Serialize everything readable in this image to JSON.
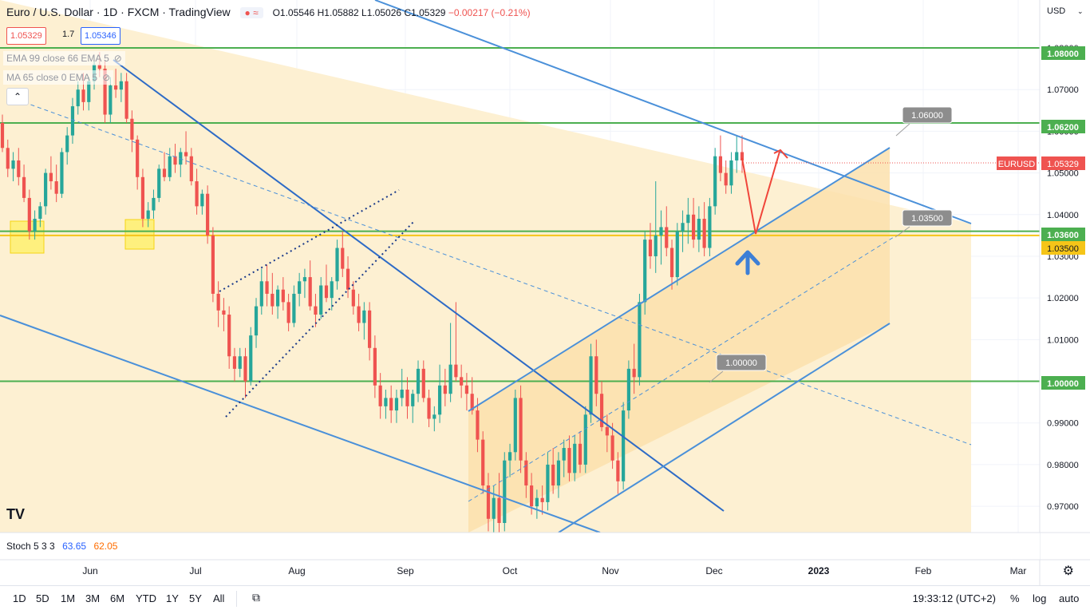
{
  "header": {
    "title": "Euro / U.S. Dollar · 1D · FXCM · TradingView",
    "badge": "≈",
    "open": "O1.05546",
    "high": "H1.05882",
    "low": "L1.05026",
    "close": "C1.05329",
    "change": "−0.00217 (−0.21%)"
  },
  "sell_box": "1.05329",
  "spread": "1.7",
  "buy_box": "1.05346",
  "indicators": [
    "EMA 99 close 66 EMA 5",
    "MA 65 close 0 EMA 5"
  ],
  "currency": "USD",
  "price_labels": {
    "level_top": "1.08000",
    "level_1062": "1.06200",
    "symbol": "EURUSD",
    "last": "1.05329",
    "level_1036": "1.03600",
    "level_1035": "1.03500",
    "level_parity": "1.00000"
  },
  "callouts": [
    "1.06000",
    "1.03500",
    "1.00000"
  ],
  "stoch": {
    "label": "Stoch 5 3 3",
    "k": "63.65",
    "d": "62.05"
  },
  "time_ranges": [
    "1D",
    "5D",
    "1M",
    "3M",
    "6M",
    "YTD",
    "1Y",
    "5Y",
    "All"
  ],
  "clock": "19:33:12 (UTC+2)",
  "options": {
    "percent": "%",
    "log": "log",
    "auto": "auto"
  },
  "colors": {
    "up": "#26a69a",
    "down": "#ef5350",
    "channel": "#2962ff",
    "trend": "#4a90d9",
    "green_level": "#4caf50",
    "yellow_level": "#f5c518",
    "zone": "#fde9b8",
    "arrow_red": "#f0453a",
    "arrow_blue": "#3d7fd6"
  },
  "chart_data": {
    "type": "candlestick",
    "symbol": "EURUSD",
    "y_axis": {
      "ticks": [
        "1.08000",
        "1.07000",
        "1.06000",
        "1.05000",
        "1.04000",
        "1.03000",
        "1.02000",
        "1.01000",
        "1.00000",
        "0.99000",
        "0.98000",
        "0.97000"
      ],
      "ylim": [
        0.9637,
        1.0915
      ]
    },
    "x_axis": {
      "ticks": [
        "Jun",
        "Jul",
        "Aug",
        "Sep",
        "Oct",
        "Nov",
        "Dec",
        "2023",
        "Feb",
        "Mar"
      ]
    },
    "horizontal_levels": [
      1.08,
      1.062,
      1.036,
      1.035,
      1.0
    ],
    "candles": [
      [
        1.062,
        1.064,
        1.055,
        1.056
      ],
      [
        1.056,
        1.058,
        1.049,
        1.051
      ],
      [
        1.051,
        1.055,
        1.048,
        1.053
      ],
      [
        1.053,
        1.056,
        1.047,
        1.049
      ],
      [
        1.049,
        1.052,
        1.043,
        1.044
      ],
      [
        1.044,
        1.046,
        1.034,
        1.036
      ],
      [
        1.036,
        1.041,
        1.034,
        1.039
      ],
      [
        1.039,
        1.043,
        1.037,
        1.042
      ],
      [
        1.042,
        1.051,
        1.04,
        1.05
      ],
      [
        1.05,
        1.054,
        1.046,
        1.048
      ],
      [
        1.048,
        1.052,
        1.043,
        1.045
      ],
      [
        1.045,
        1.056,
        1.044,
        1.055
      ],
      [
        1.055,
        1.061,
        1.052,
        1.059
      ],
      [
        1.059,
        1.068,
        1.057,
        1.066
      ],
      [
        1.066,
        1.072,
        1.064,
        1.07
      ],
      [
        1.07,
        1.074,
        1.065,
        1.067
      ],
      [
        1.067,
        1.073,
        1.065,
        1.072
      ],
      [
        1.072,
        1.078,
        1.07,
        1.076
      ],
      [
        1.076,
        1.079,
        1.073,
        1.075
      ],
      [
        1.075,
        1.077,
        1.062,
        1.064
      ],
      [
        1.064,
        1.073,
        1.062,
        1.071
      ],
      [
        1.071,
        1.075,
        1.068,
        1.07
      ],
      [
        1.07,
        1.074,
        1.067,
        1.072
      ],
      [
        1.072,
        1.074,
        1.062,
        1.063
      ],
      [
        1.063,
        1.065,
        1.055,
        1.058
      ],
      [
        1.058,
        1.059,
        1.046,
        1.049
      ],
      [
        1.049,
        1.051,
        1.037,
        1.039
      ],
      [
        1.039,
        1.043,
        1.037,
        1.041
      ],
      [
        1.041,
        1.046,
        1.039,
        1.044
      ],
      [
        1.044,
        1.052,
        1.043,
        1.051
      ],
      [
        1.051,
        1.055,
        1.048,
        1.049
      ],
      [
        1.049,
        1.056,
        1.048,
        1.054
      ],
      [
        1.054,
        1.057,
        1.05,
        1.052
      ],
      [
        1.052,
        1.056,
        1.049,
        1.055
      ],
      [
        1.055,
        1.06,
        1.052,
        1.054
      ],
      [
        1.054,
        1.056,
        1.047,
        1.048
      ],
      [
        1.048,
        1.051,
        1.04,
        1.042
      ],
      [
        1.042,
        1.046,
        1.04,
        1.045
      ],
      [
        1.045,
        1.047,
        1.033,
        1.035
      ],
      [
        1.035,
        1.037,
        1.019,
        1.021
      ],
      [
        1.021,
        1.024,
        1.013,
        1.017
      ],
      [
        1.017,
        1.02,
        1.012,
        1.016
      ],
      [
        1.016,
        1.018,
        1.003,
        1.006
      ],
      [
        1.006,
        1.008,
        1.0,
        1.003
      ],
      [
        1.003,
        1.008,
        1.001,
        1.006
      ],
      [
        1.006,
        1.008,
        0.996,
        1.0
      ],
      [
        1.0,
        1.013,
        0.999,
        1.011
      ],
      [
        1.011,
        1.02,
        1.008,
        1.018
      ],
      [
        1.018,
        1.027,
        1.016,
        1.024
      ],
      [
        1.024,
        1.028,
        1.018,
        1.021
      ],
      [
        1.021,
        1.026,
        1.016,
        1.018
      ],
      [
        1.018,
        1.023,
        1.015,
        1.022
      ],
      [
        1.022,
        1.025,
        1.017,
        1.019
      ],
      [
        1.019,
        1.021,
        1.012,
        1.014
      ],
      [
        1.014,
        1.023,
        1.013,
        1.021
      ],
      [
        1.021,
        1.026,
        1.018,
        1.024
      ],
      [
        1.024,
        1.027,
        1.02,
        1.025
      ],
      [
        1.025,
        1.029,
        1.017,
        1.018
      ],
      [
        1.018,
        1.021,
        1.013,
        1.016
      ],
      [
        1.016,
        1.025,
        1.015,
        1.023
      ],
      [
        1.023,
        1.028,
        1.019,
        1.02
      ],
      [
        1.02,
        1.025,
        1.017,
        1.024
      ],
      [
        1.024,
        1.034,
        1.022,
        1.032
      ],
      [
        1.032,
        1.036,
        1.025,
        1.027
      ],
      [
        1.027,
        1.03,
        1.02,
        1.022
      ],
      [
        1.022,
        1.024,
        1.016,
        1.018
      ],
      [
        1.018,
        1.021,
        1.012,
        1.014
      ],
      [
        1.014,
        1.019,
        1.01,
        1.017
      ],
      [
        1.017,
        1.019,
        1.005,
        1.008
      ],
      [
        1.008,
        1.011,
        0.996,
        0.999
      ],
      [
        0.999,
        1.002,
        0.991,
        0.994
      ],
      [
        0.994,
        0.998,
        0.991,
        0.996
      ],
      [
        0.996,
        0.999,
        0.99,
        0.993
      ],
      [
        0.993,
        0.998,
        0.99,
        0.996
      ],
      [
        0.996,
        1.003,
        0.994,
        0.998
      ],
      [
        0.998,
        1.001,
        0.991,
        0.994
      ],
      [
        0.994,
        0.998,
        0.99,
        0.997
      ],
      [
        0.997,
        1.005,
        0.995,
        1.003
      ],
      [
        1.003,
        1.005,
        0.995,
        0.996
      ],
      [
        0.996,
        0.998,
        0.989,
        0.991
      ],
      [
        0.991,
        0.994,
        0.988,
        0.992
      ],
      [
        0.992,
        1.004,
        0.99,
        0.999
      ],
      [
        0.999,
        1.003,
        0.994,
        0.997
      ],
      [
        0.997,
        1.014,
        0.995,
        1.004
      ],
      [
        1.004,
        1.019,
        1.0,
        1.001
      ],
      [
        1.001,
        1.004,
        0.996,
        0.999
      ],
      [
        0.999,
        1.002,
        0.993,
        0.997
      ],
      [
        0.997,
        1.001,
        0.992,
        0.993
      ],
      [
        0.993,
        0.996,
        0.983,
        0.986
      ],
      [
        0.986,
        0.988,
        0.973,
        0.975
      ],
      [
        0.975,
        0.978,
        0.964,
        0.967
      ],
      [
        0.967,
        0.975,
        0.963,
        0.972
      ],
      [
        0.972,
        0.978,
        0.963,
        0.966
      ],
      [
        0.966,
        0.983,
        0.964,
        0.981
      ],
      [
        0.981,
        0.985,
        0.977,
        0.983
      ],
      [
        0.983,
        0.998,
        0.981,
        0.996
      ],
      [
        0.996,
        0.999,
        0.978,
        0.981
      ],
      [
        0.981,
        0.983,
        0.972,
        0.975
      ],
      [
        0.975,
        0.978,
        0.968,
        0.97
      ],
      [
        0.97,
        0.974,
        0.967,
        0.972
      ],
      [
        0.972,
        0.975,
        0.968,
        0.971
      ],
      [
        0.971,
        0.983,
        0.969,
        0.98
      ],
      [
        0.98,
        0.984,
        0.973,
        0.975
      ],
      [
        0.975,
        0.983,
        0.972,
        0.981
      ],
      [
        0.981,
        0.986,
        0.977,
        0.984
      ],
      [
        0.984,
        0.987,
        0.976,
        0.978
      ],
      [
        0.978,
        0.987,
        0.976,
        0.985
      ],
      [
        0.985,
        0.988,
        0.978,
        0.98
      ],
      [
        0.98,
        0.994,
        0.978,
        0.992
      ],
      [
        0.992,
        1.009,
        0.99,
        1.006
      ],
      [
        1.006,
        1.01,
        0.994,
        0.997
      ],
      [
        0.997,
        1.0,
        0.988,
        0.989
      ],
      [
        0.989,
        0.992,
        0.983,
        0.987
      ],
      [
        0.987,
        0.99,
        0.979,
        0.981
      ],
      [
        0.981,
        0.983,
        0.973,
        0.976
      ],
      [
        0.976,
        0.995,
        0.974,
        0.993
      ],
      [
        0.993,
        1.005,
        0.991,
        1.003
      ],
      [
        1.003,
        1.009,
        0.997,
        1.001
      ],
      [
        1.001,
        1.021,
        0.999,
        1.019
      ],
      [
        1.019,
        1.036,
        1.016,
        1.034
      ],
      [
        1.034,
        1.038,
        1.027,
        1.03
      ],
      [
        1.03,
        1.048,
        1.026,
        1.035
      ],
      [
        1.035,
        1.041,
        1.028,
        1.037
      ],
      [
        1.037,
        1.042,
        1.03,
        1.032
      ],
      [
        1.032,
        1.034,
        1.022,
        1.025
      ],
      [
        1.025,
        1.038,
        1.023,
        1.036
      ],
      [
        1.036,
        1.041,
        1.031,
        1.038
      ],
      [
        1.038,
        1.044,
        1.033,
        1.04
      ],
      [
        1.04,
        1.044,
        1.032,
        1.034
      ],
      [
        1.034,
        1.042,
        1.031,
        1.039
      ],
      [
        1.039,
        1.043,
        1.03,
        1.032
      ],
      [
        1.032,
        1.044,
        1.03,
        1.042
      ],
      [
        1.042,
        1.056,
        1.04,
        1.054
      ],
      [
        1.054,
        1.059,
        1.048,
        1.05
      ],
      [
        1.05,
        1.053,
        1.045,
        1.047
      ],
      [
        1.047,
        1.055,
        1.045,
        1.053
      ],
      [
        1.053,
        1.059,
        1.05,
        1.055
      ],
      [
        1.055,
        1.059,
        1.05,
        1.053
      ]
    ]
  }
}
